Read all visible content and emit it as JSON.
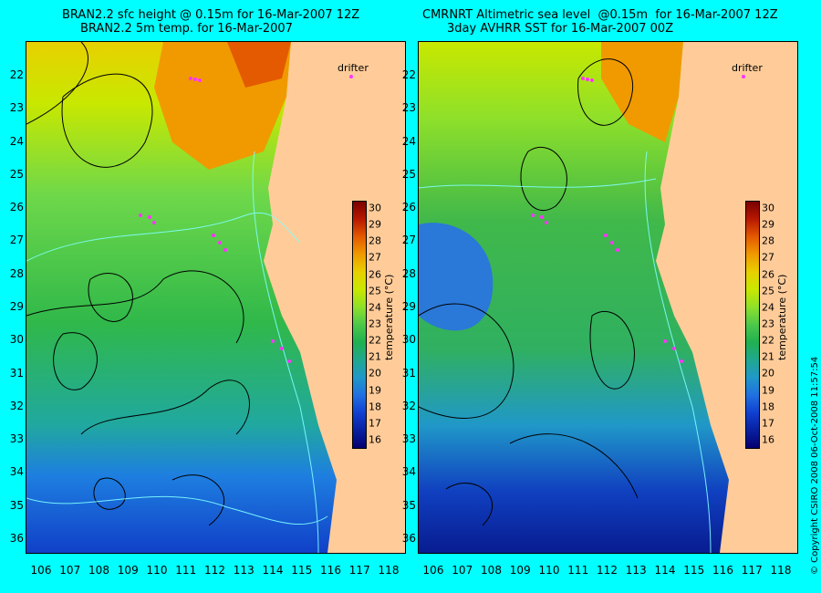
{
  "left_panel": {
    "title_line1": "BRAN2.2 sfc height @ 0.15m for 16-Mar-2007 12Z",
    "title_line2": "BRAN2.2 5m temp. for 16-Mar-2007",
    "drifter_label": "drifter"
  },
  "right_panel": {
    "title_line1": "CMRNRT Altimetric sea level  @0.15m  for 16-Mar-2007 12Z",
    "title_line2": "3day AVHRR SST for 16-Mar-2007 00Z",
    "drifter_label": "drifter"
  },
  "x_axis_labels": [
    "106",
    "107",
    "108",
    "109",
    "110",
    "111",
    "112",
    "113",
    "114",
    "115",
    "116",
    "117",
    "118"
  ],
  "y_axis_labels": [
    "22",
    "23",
    "24",
    "25",
    "26",
    "27",
    "28",
    "29",
    "30",
    "31",
    "32",
    "33",
    "34",
    "35",
    "36"
  ],
  "legend": {
    "title": "temperature (°C)",
    "ticks": [
      "30",
      "29",
      "28",
      "27",
      "26",
      "25",
      "24",
      "23",
      "22",
      "21",
      "20",
      "19",
      "18",
      "17",
      "16"
    ],
    "colors": [
      "#7a0000",
      "#b81800",
      "#e45a00",
      "#f09a00",
      "#e8d000",
      "#c8e800",
      "#8ee02a",
      "#4cc84a",
      "#20b050",
      "#20a890",
      "#2098c8",
      "#2070e0",
      "#1040d0",
      "#0820a0",
      "#040070"
    ]
  },
  "copyright": "© Copyright CSIRO 2008   06-Oct-2008 11:57:54",
  "colors": {
    "land": "#ffcc99",
    "background": "#00ffff"
  }
}
